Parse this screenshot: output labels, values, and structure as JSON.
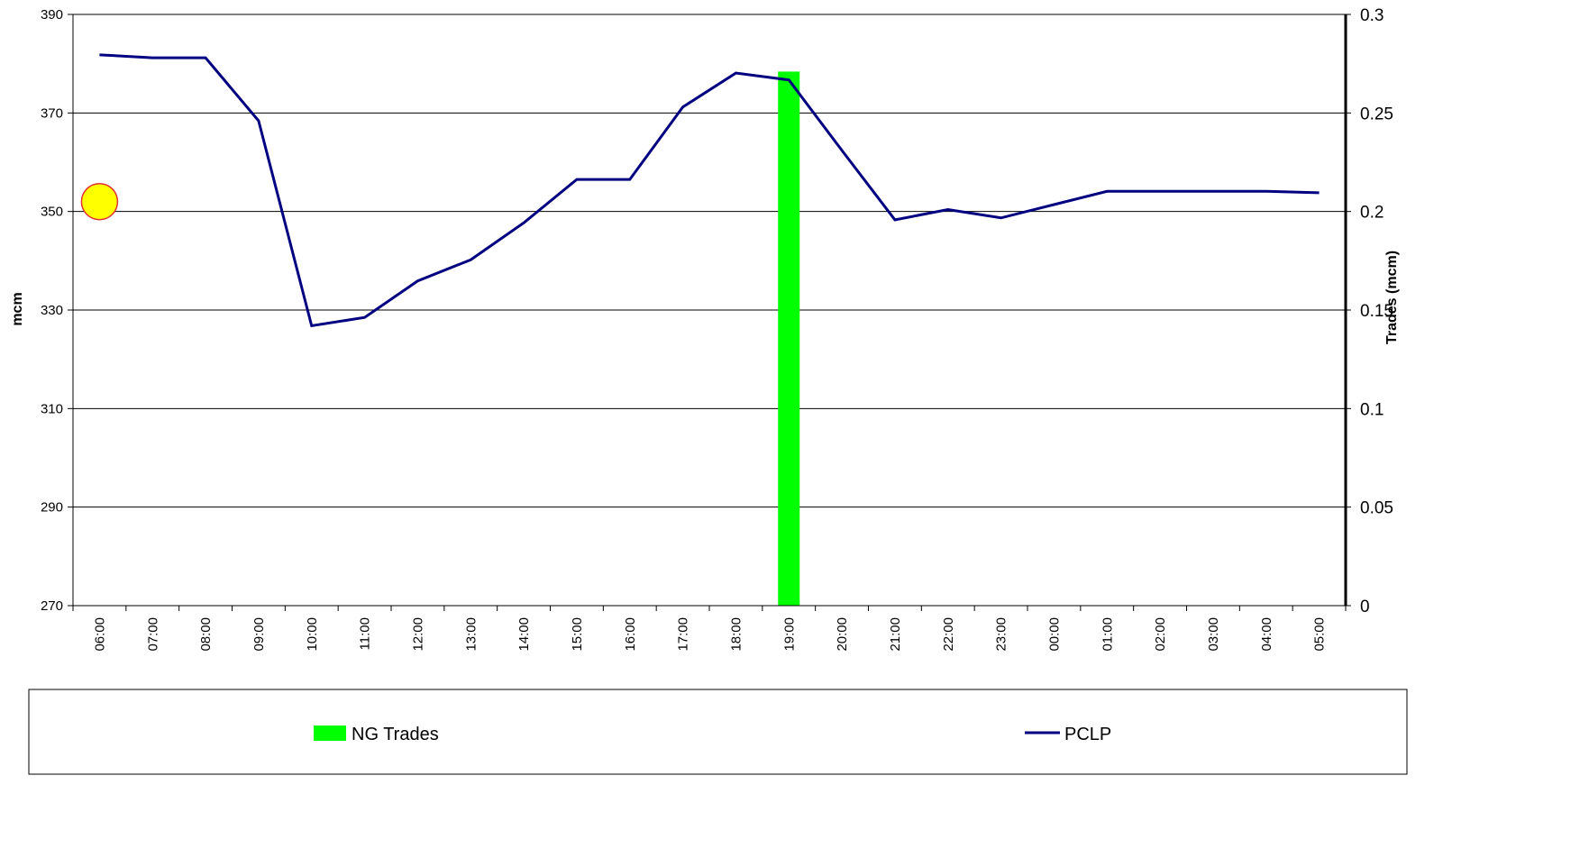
{
  "chart_data": {
    "type": "bar+line",
    "categories": [
      "06:00",
      "07:00",
      "08:00",
      "09:00",
      "10:00",
      "11:00",
      "12:00",
      "13:00",
      "14:00",
      "15:00",
      "16:00",
      "17:00",
      "18:00",
      "19:00",
      "20:00",
      "21:00",
      "22:00",
      "23:00",
      "00:00",
      "01:00",
      "02:00",
      "03:00",
      "04:00",
      "05:00"
    ],
    "ylabel": "mcm",
    "ylim": [
      270,
      390
    ],
    "yticks": [
      "270",
      "290",
      "310",
      "330",
      "350",
      "370",
      "390"
    ],
    "y2label": "Trades (mcm)",
    "y2lim": [
      0,
      0.3
    ],
    "y2ticks": [
      "0",
      "0.05",
      "0.1",
      "0.15",
      "0.2",
      "0.25",
      "0.3"
    ],
    "grid": true,
    "legend_position": "bottom",
    "series": [
      {
        "name": "NG Trades",
        "type": "bar",
        "axis": "right",
        "color": "#00ff00",
        "values": [
          0,
          0,
          0,
          0,
          0,
          0,
          0,
          0,
          0,
          0,
          0,
          0,
          0,
          0.271,
          0,
          0,
          0,
          0,
          0,
          0,
          0,
          0,
          0,
          0
        ]
      },
      {
        "name": "PCLP",
        "type": "line",
        "axis": "left",
        "color": "#000080",
        "values": [
          381.8,
          381.2,
          381.2,
          368.4,
          326.8,
          328.5,
          335.9,
          340.2,
          347.7,
          356.5,
          356.5,
          371.2,
          378.1,
          376.7,
          362.4,
          348.3,
          350.4,
          348.7,
          351.4,
          354.1,
          354.1,
          354.1,
          354.1,
          353.8
        ]
      }
    ],
    "marker": {
      "type": "circle",
      "category": "06:00",
      "value": 352.0,
      "fill": "#ffff00",
      "stroke": "#e03030"
    }
  }
}
